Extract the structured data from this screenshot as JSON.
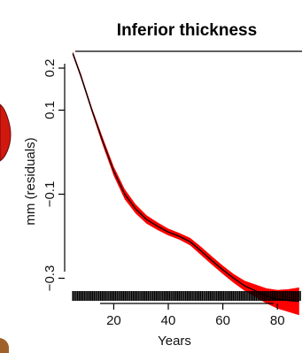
{
  "chart_data": {
    "type": "line",
    "title": "Inferior thickness",
    "xlabel": "Years",
    "ylabel": "mm (residuals)",
    "xlim": [
      2,
      90
    ],
    "ylim": [
      -0.36,
      0.24
    ],
    "x_ticks": [
      20,
      40,
      60,
      80
    ],
    "y_ticks": [
      0.2,
      0.1,
      -0.1,
      -0.3
    ],
    "y_tick_labels": [
      "0.2",
      "0.1",
      "−0.1",
      "−0.3"
    ],
    "grid": false,
    "series": [
      {
        "type": "fitted-curve-with-confidence-band",
        "color": "#000000",
        "band_color": "#ff0000",
        "x": [
          5,
          8,
          12,
          16,
          20,
          24,
          28,
          32,
          36,
          40,
          44,
          48,
          52,
          56,
          60,
          64,
          68,
          72,
          76,
          80,
          84,
          88
        ],
        "y": [
          0.235,
          0.18,
          0.1,
          0.025,
          -0.045,
          -0.1,
          -0.135,
          -0.16,
          -0.176,
          -0.19,
          -0.2,
          -0.213,
          -0.235,
          -0.258,
          -0.28,
          -0.3,
          -0.318,
          -0.33,
          -0.342,
          -0.35,
          -0.353,
          -0.355
        ],
        "lower": [
          0.23,
          0.175,
          0.094,
          0.016,
          -0.056,
          -0.112,
          -0.146,
          -0.17,
          -0.185,
          -0.198,
          -0.208,
          -0.222,
          -0.245,
          -0.268,
          -0.29,
          -0.311,
          -0.33,
          -0.345,
          -0.36,
          -0.372,
          -0.38,
          -0.388
        ],
        "upper": [
          0.24,
          0.186,
          0.106,
          0.034,
          -0.034,
          -0.088,
          -0.124,
          -0.15,
          -0.167,
          -0.182,
          -0.192,
          -0.204,
          -0.225,
          -0.248,
          -0.27,
          -0.29,
          -0.306,
          -0.315,
          -0.324,
          -0.328,
          -0.326,
          -0.322
        ]
      }
    ],
    "rug": {
      "color": "#000000",
      "x": [
        5,
        5.6,
        6.2,
        6.8,
        7.4,
        8,
        8.6,
        9.2,
        9.8,
        10.4,
        11,
        11.6,
        12.2,
        12.8,
        13.4,
        14,
        14.6,
        15.2,
        15.8,
        16.4,
        17,
        17.6,
        18.2,
        18.8,
        19.4,
        20,
        20.6,
        21.2,
        21.8,
        22.4,
        23,
        23.6,
        24.2,
        24.8,
        25.4,
        26,
        26.6,
        27.2,
        27.8,
        28.4,
        29,
        29.6,
        30.2,
        30.8,
        31.4,
        32,
        32.6,
        33.2,
        33.8,
        34.4,
        35,
        35.6,
        36.2,
        36.8,
        37.4,
        38,
        38.6,
        39.2,
        39.8,
        40.4,
        41,
        41.6,
        42.2,
        42.8,
        43.4,
        44,
        44.6,
        45.2,
        45.8,
        46.4,
        47,
        47.6,
        48.2,
        48.8,
        49.4,
        50,
        50.6,
        51.2,
        51.8,
        52.4,
        53,
        53.6,
        54.2,
        54.8,
        55.4,
        56,
        56.6,
        57.2,
        57.8,
        58.4,
        59,
        59.6,
        60.2,
        60.8,
        61.4,
        62,
        62.6,
        63.2,
        63.8,
        64.4,
        65,
        65.6,
        66.2,
        66.8,
        67.4,
        68,
        68.6,
        69.2,
        69.8,
        70.4,
        71,
        71.6,
        72.2,
        72.8,
        73.4,
        74,
        74.6,
        75.2,
        75.8,
        76.4,
        77,
        77.6,
        78.2,
        78.8,
        79.4,
        80,
        80.6,
        81.2,
        81.8,
        82.4,
        83,
        83.6,
        84.2,
        84.8,
        85.4,
        86,
        86.6,
        87.2,
        87.8,
        88.4
      ]
    }
  }
}
